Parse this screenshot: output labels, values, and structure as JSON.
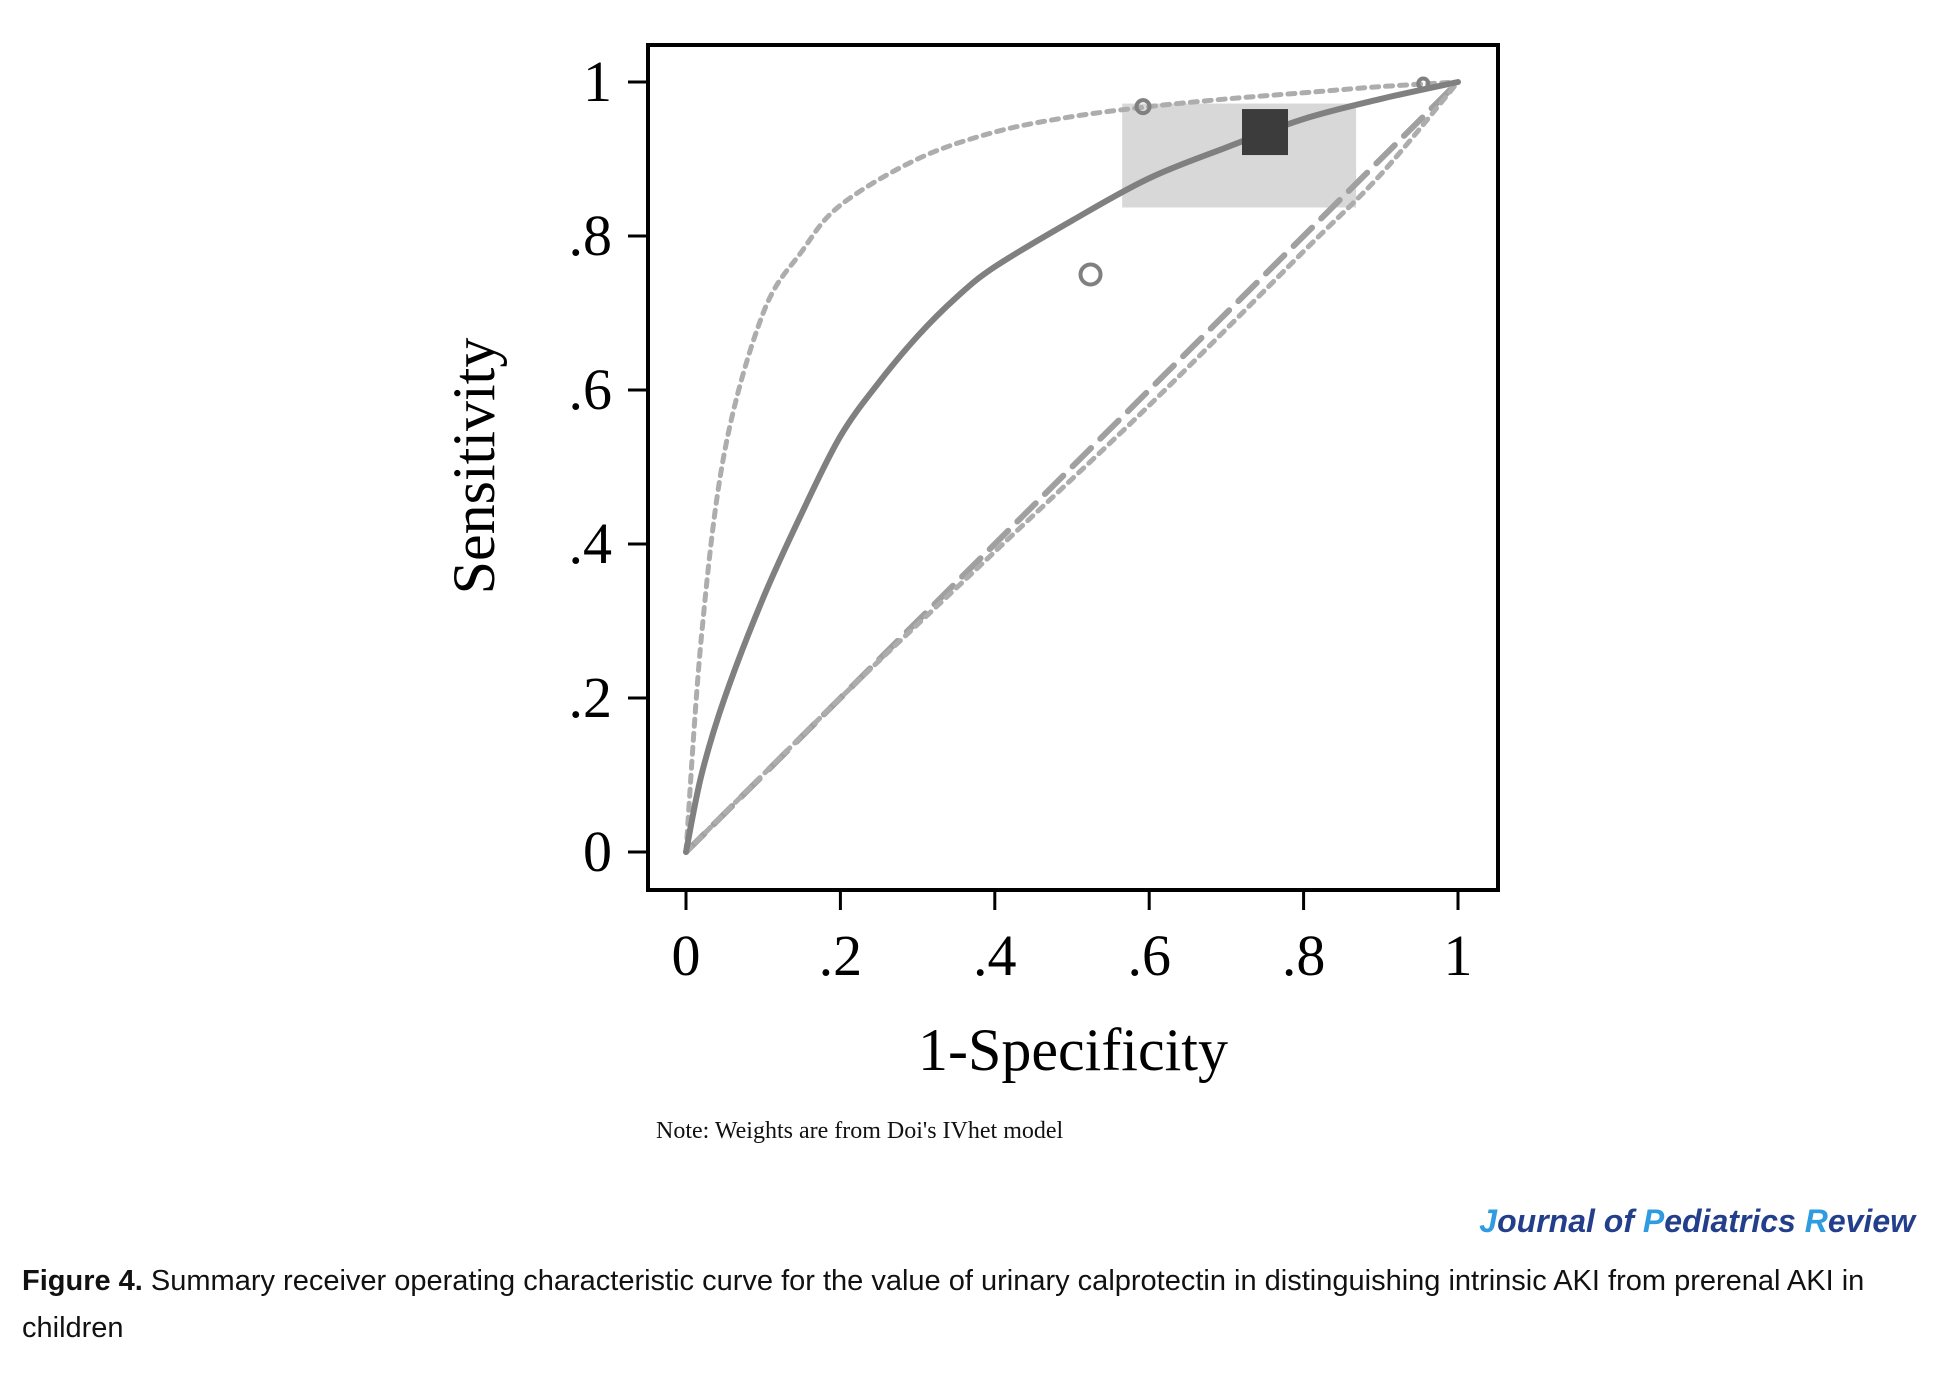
{
  "chart_data": {
    "type": "scatter",
    "xlabel": "1-Specificity",
    "ylabel": "Sensitivity",
    "xlim": [
      0,
      1
    ],
    "ylim": [
      0,
      1
    ],
    "x_ticks": [
      "0",
      ".2",
      ".4",
      ".6",
      ".8",
      "1"
    ],
    "y_ticks": [
      "0",
      ".2",
      ".4",
      ".6",
      ".8",
      "1"
    ],
    "grid": false,
    "summary_point": {
      "x": 0.75,
      "y": 0.935
    },
    "summary_confidence_region": {
      "x": [
        0.565,
        0.868
      ],
      "y": [
        0.837,
        0.972
      ]
    },
    "study_points": [
      {
        "x": 0.524,
        "y": 0.75
      },
      {
        "x": 0.592,
        "y": 0.968
      },
      {
        "x": 0.955,
        "y": 0.998
      }
    ],
    "curves": [
      {
        "style": "solid",
        "points": [
          [
            0,
            0
          ],
          [
            0.02,
            0.1
          ],
          [
            0.05,
            0.2
          ],
          [
            0.1,
            0.33
          ],
          [
            0.15,
            0.44
          ],
          [
            0.2,
            0.54
          ],
          [
            0.25,
            0.61
          ],
          [
            0.3,
            0.67
          ],
          [
            0.35,
            0.72
          ],
          [
            0.4,
            0.76
          ],
          [
            0.5,
            0.82
          ],
          [
            0.6,
            0.875
          ],
          [
            0.7,
            0.915
          ],
          [
            0.8,
            0.952
          ],
          [
            0.9,
            0.978
          ],
          [
            1,
            1
          ]
        ]
      },
      {
        "style": "dotted-upper",
        "points": [
          [
            0,
            0
          ],
          [
            0.02,
            0.28
          ],
          [
            0.05,
            0.52
          ],
          [
            0.1,
            0.7
          ],
          [
            0.15,
            0.78
          ],
          [
            0.2,
            0.84
          ],
          [
            0.3,
            0.9
          ],
          [
            0.4,
            0.935
          ],
          [
            0.5,
            0.955
          ],
          [
            0.6,
            0.968
          ],
          [
            0.7,
            0.978
          ],
          [
            0.8,
            0.986
          ],
          [
            0.9,
            0.994
          ],
          [
            1,
            1
          ]
        ]
      },
      {
        "style": "dotted-lower",
        "points": [
          [
            0,
            0
          ],
          [
            0.2,
            0.2
          ],
          [
            0.4,
            0.39
          ],
          [
            0.6,
            0.58
          ],
          [
            0.8,
            0.78
          ],
          [
            0.9,
            0.88
          ],
          [
            1,
            1
          ]
        ]
      },
      {
        "style": "dashed-reference",
        "points": [
          [
            0,
            0
          ],
          [
            1,
            1
          ]
        ]
      }
    ]
  },
  "note": "Note: Weights are from Doi's IVhet model",
  "journal": {
    "j": "J",
    "ournal": "ournal of ",
    "p": "P",
    "ediatrics": "ediatrics ",
    "r": "R",
    "eview": "eview"
  },
  "caption": {
    "label": "Figure 4.",
    "text": " Summary receiver operating characteristic curve for the value of urinary calprotectin in distinguishing intrinsic AKI from prerenal AKI in children"
  }
}
